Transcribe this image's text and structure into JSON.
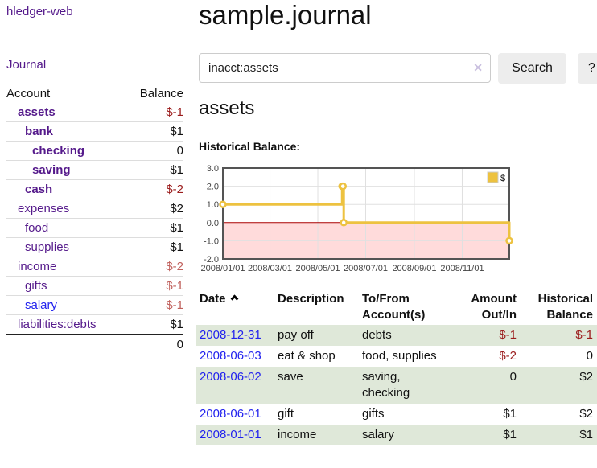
{
  "app": {
    "title": "hledger-web"
  },
  "colors": {
    "link_purple": "#551a8b",
    "link_blue": "#2222ee",
    "negative_dark": "#9b1c1c",
    "negative_light": "#c0605c",
    "row_stripe_green": "#dfe8d9",
    "button_gray": "#ededed"
  },
  "sidebar": {
    "journal_link": "Journal",
    "table": {
      "headers": [
        "Account",
        "Balance"
      ],
      "rows": [
        {
          "account": "assets",
          "balance": "$-1",
          "depth": 1,
          "bold": true,
          "balance_style": "neg-dark",
          "link_blue": false
        },
        {
          "account": "bank",
          "balance": "$1",
          "depth": 2,
          "bold": true,
          "balance_style": "pos",
          "link_blue": false
        },
        {
          "account": "checking",
          "balance": "0",
          "depth": 3,
          "bold": true,
          "balance_style": "pos",
          "link_blue": false
        },
        {
          "account": "saving",
          "balance": "$1",
          "depth": 3,
          "bold": true,
          "balance_style": "pos",
          "link_blue": false
        },
        {
          "account": "cash",
          "balance": "$-2",
          "depth": 2,
          "bold": true,
          "balance_style": "neg-dark",
          "link_blue": false
        },
        {
          "account": "expenses",
          "balance": "$2",
          "depth": 1,
          "bold": false,
          "balance_style": "pos",
          "link_blue": false
        },
        {
          "account": "food",
          "balance": "$1",
          "depth": 2,
          "bold": false,
          "balance_style": "pos",
          "link_blue": false
        },
        {
          "account": "supplies",
          "balance": "$1",
          "depth": 2,
          "bold": false,
          "balance_style": "pos",
          "link_blue": false
        },
        {
          "account": "income",
          "balance": "$-2",
          "depth": 1,
          "bold": false,
          "balance_style": "neg-light",
          "link_blue": false
        },
        {
          "account": "gifts",
          "balance": "$-1",
          "depth": 2,
          "bold": false,
          "balance_style": "neg-light",
          "link_blue": false
        },
        {
          "account": "salary",
          "balance": "$-1",
          "depth": 2,
          "bold": false,
          "balance_style": "neg-light",
          "link_blue": true
        },
        {
          "account": "liabilities:debts",
          "balance": "$1",
          "depth": 1,
          "bold": false,
          "balance_style": "pos",
          "link_blue": false
        }
      ],
      "total": "0"
    }
  },
  "main": {
    "title": "sample.journal",
    "search": {
      "value": "inacct:assets",
      "clear_icon": "✕",
      "button": "Search",
      "help_button": "?"
    },
    "account_heading": "assets",
    "chart_heading": "Historical Balance:"
  },
  "chart_data": {
    "type": "line",
    "title": "Historical Balance:",
    "series": [
      {
        "name": "$",
        "color": "#edc240",
        "steps": true,
        "markers": true,
        "points": [
          [
            "2008-01-01",
            1
          ],
          [
            "2008-06-01",
            2
          ],
          [
            "2008-06-02",
            2
          ],
          [
            "2008-06-03",
            0
          ],
          [
            "2008-12-31",
            -1
          ]
        ]
      }
    ],
    "xlim": [
      "2008-01-01",
      "2008-12-31"
    ],
    "ylim": [
      -2,
      3
    ],
    "y_ticks": [
      "3.0",
      "2.0",
      "1.0",
      "0.0",
      "-1.0",
      "-2.0"
    ],
    "x_ticks": [
      "2008/01/01",
      "2008/03/01",
      "2008/05/01",
      "2008/07/01",
      "2008/09/01",
      "2008/11/01"
    ],
    "grid": true,
    "legend_position": "top-right",
    "zero_line_color": "#aa0000",
    "negative_fill": "#ffdbdb",
    "border_color": "#545454",
    "grid_color": "#e0e0e0",
    "tick_label_color": "#444444"
  },
  "transactions": {
    "sort_icon": "chevron-up",
    "headers": {
      "date": "Date",
      "description": "Description",
      "tofrom_line1": "To/From",
      "tofrom_line2": "Account(s)",
      "amount_line1": "Amount",
      "amount_line2": "Out/In",
      "balance_line1": "Historical",
      "balance_line2": "Balance"
    },
    "rows": [
      {
        "date": "2008-12-31",
        "description": "pay off",
        "accounts": "debts",
        "amount": "$-1",
        "amount_neg": true,
        "balance": "$-1",
        "balance_neg": true
      },
      {
        "date": "2008-06-03",
        "description": "eat & shop",
        "accounts": "food, supplies",
        "amount": "$-2",
        "amount_neg": true,
        "balance": "0",
        "balance_neg": false
      },
      {
        "date": "2008-06-02",
        "description": "save",
        "accounts": "saving, checking",
        "amount": "0",
        "amount_neg": false,
        "balance": "$2",
        "balance_neg": false
      },
      {
        "date": "2008-06-01",
        "description": "gift",
        "accounts": "gifts",
        "amount": "$1",
        "amount_neg": false,
        "balance": "$2",
        "balance_neg": false
      },
      {
        "date": "2008-01-01",
        "description": "income",
        "accounts": "salary",
        "amount": "$1",
        "amount_neg": false,
        "balance": "$1",
        "balance_neg": false
      }
    ]
  }
}
